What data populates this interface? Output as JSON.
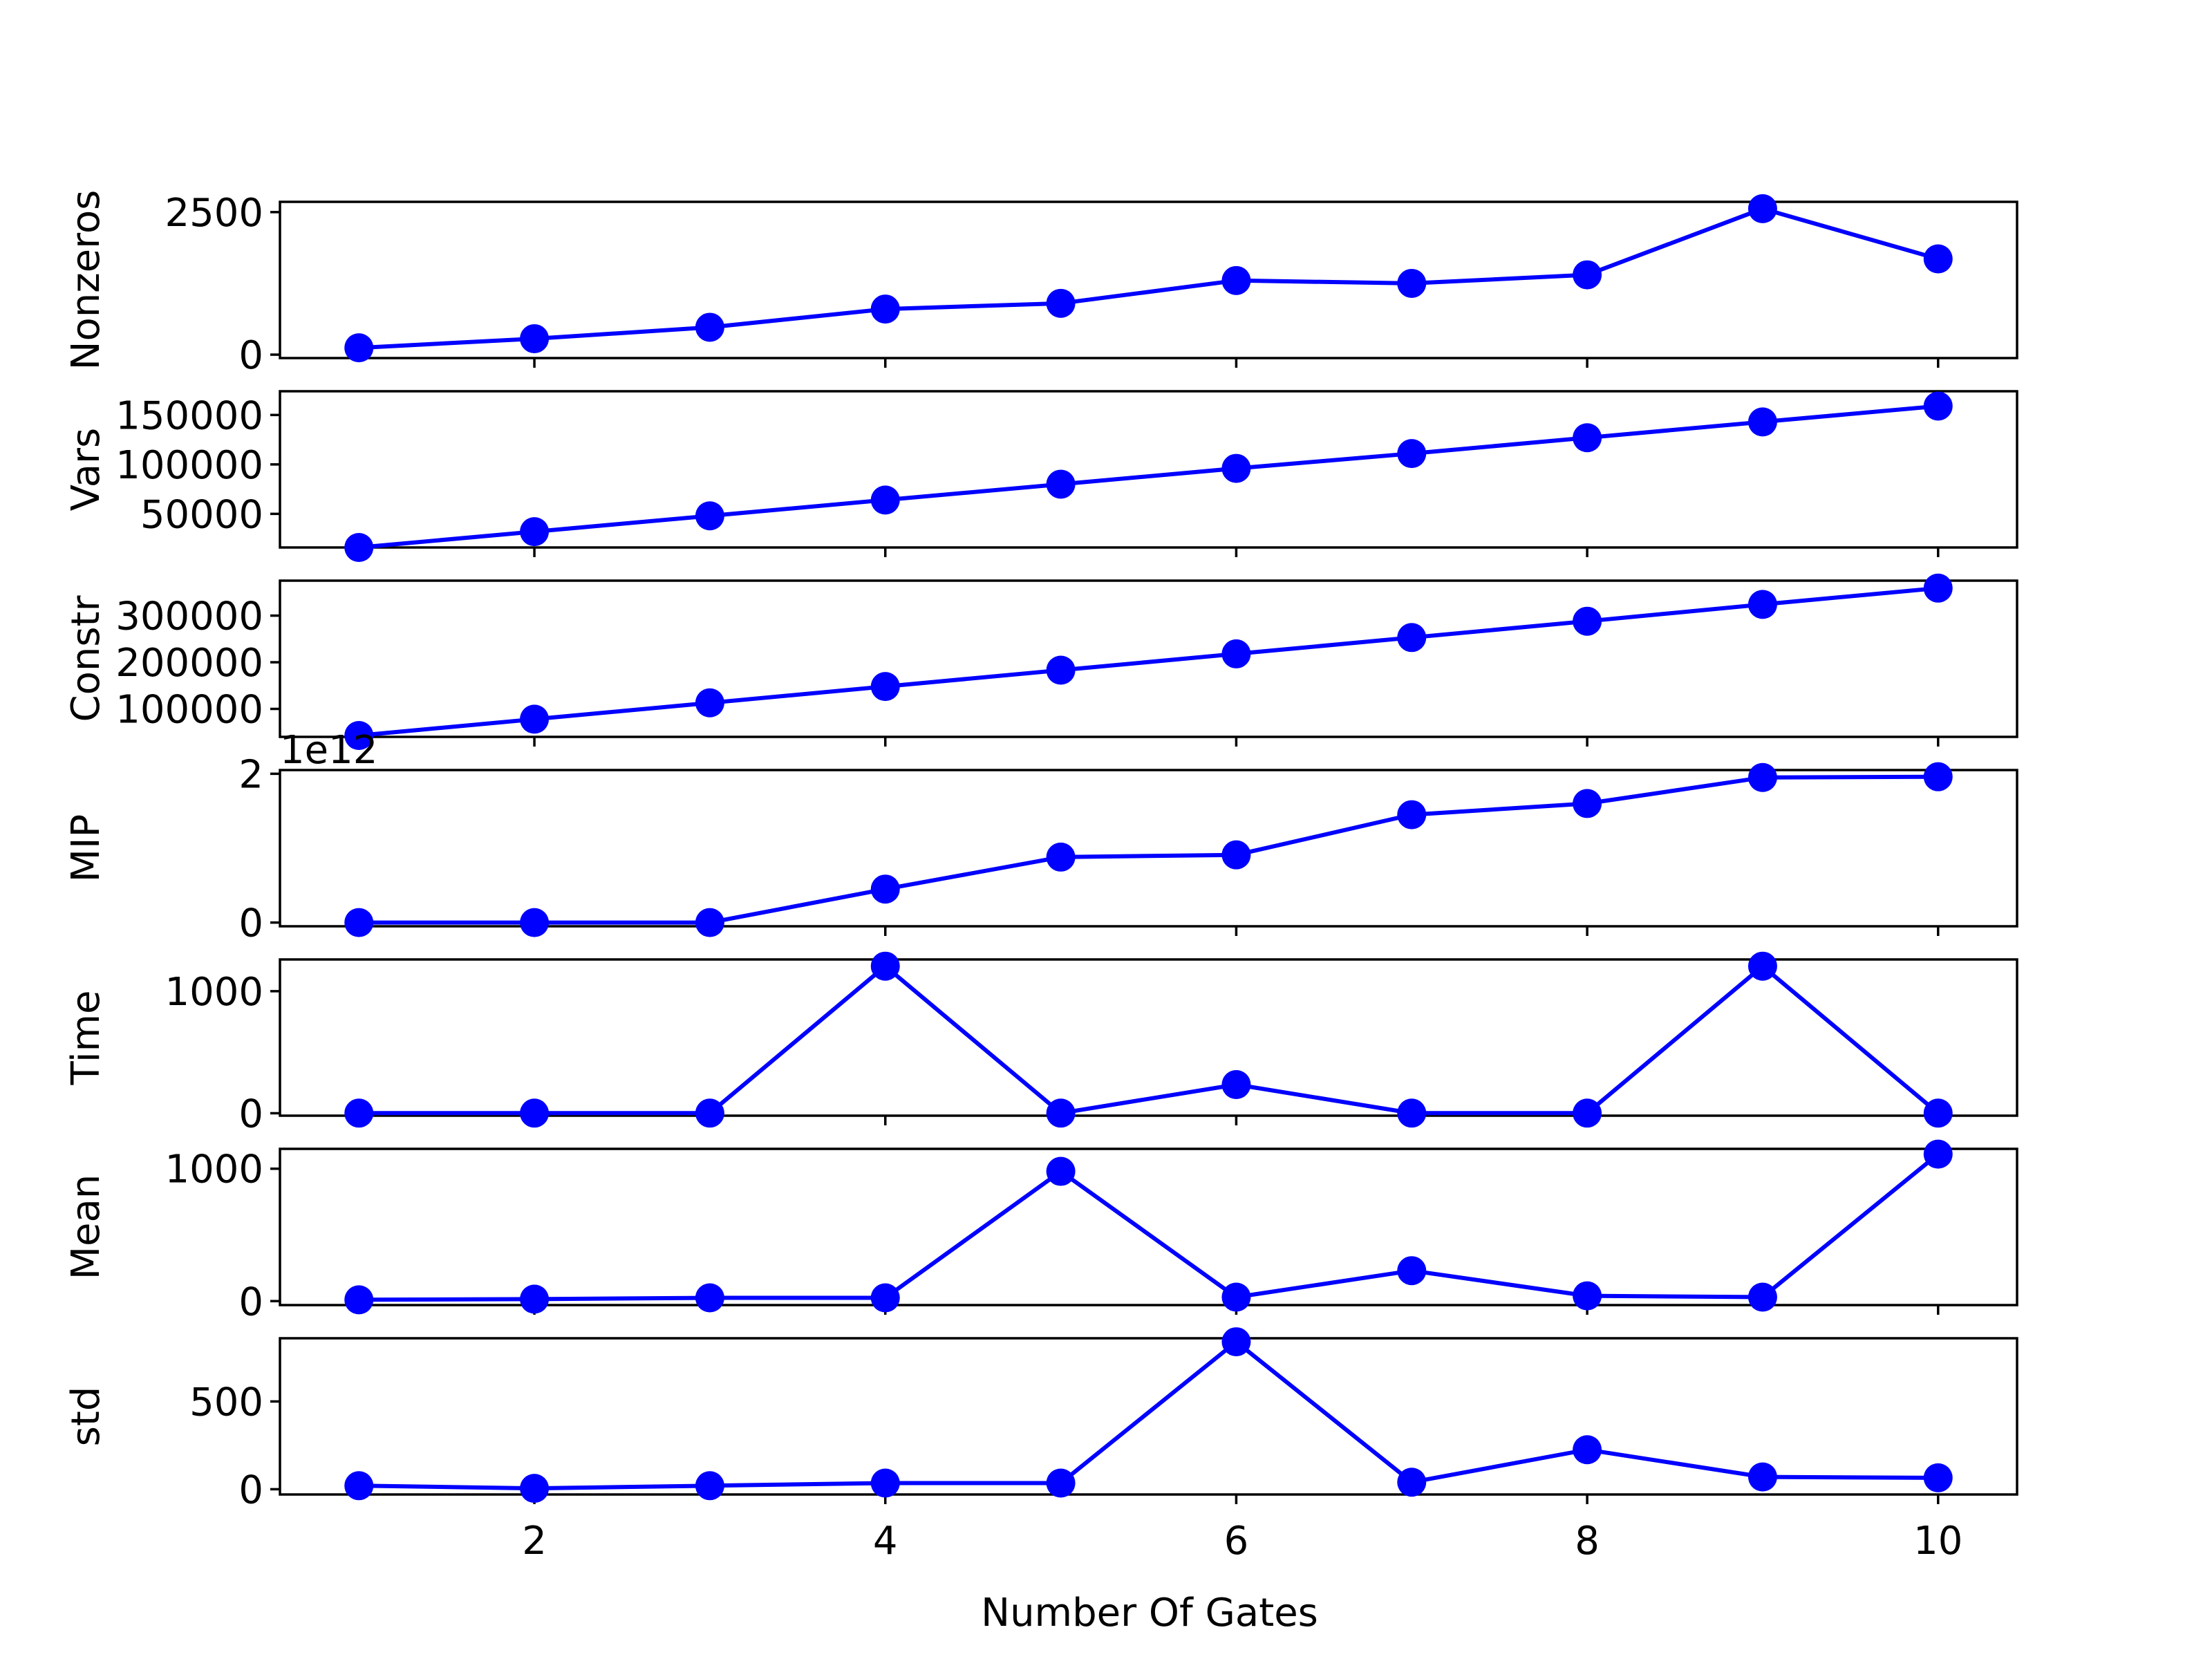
{
  "chart_data": {
    "type": "line",
    "layout": "stacked-subplots",
    "shared_x": true,
    "xlabel": "Number Of Gates",
    "x": [
      1,
      2,
      3,
      4,
      5,
      6,
      7,
      8,
      9,
      10
    ],
    "xticks": [
      2,
      4,
      6,
      8,
      10
    ],
    "xlim": [
      0.55,
      10.45
    ],
    "grid": false,
    "color": "#0000ff",
    "marker": "circle",
    "subplots": [
      {
        "ylabel": "Nonzeros",
        "ylim": [
          -60,
          2680
        ],
        "yticks": [
          0,
          2500
        ],
        "ytick_labels": [
          "0",
          "2500"
        ],
        "values": [
          120,
          280,
          480,
          800,
          900,
          1300,
          1250,
          1400,
          2560,
          1680
        ]
      },
      {
        "ylabel": "Vars",
        "ylim": [
          16000,
          174000
        ],
        "yticks": [
          50000,
          100000,
          150000
        ],
        "ytick_labels": [
          "50000",
          "100000",
          "150000"
        ],
        "values": [
          16000,
          32000,
          48000,
          64000,
          80000,
          96000,
          111000,
          127000,
          143000,
          159000
        ]
      },
      {
        "ylabel": "Constr",
        "ylim": [
          40000,
          375000
        ],
        "yticks": [
          100000,
          200000,
          300000
        ],
        "ytick_labels": [
          "100000",
          "200000",
          "300000"
        ],
        "values": [
          43000,
          78000,
          113000,
          148000,
          183000,
          218000,
          253000,
          288000,
          324000,
          359000
        ]
      },
      {
        "ylabel": "MIP",
        "ylim": [
          -0.05,
          2.05
        ],
        "offset_text": "1e12",
        "yticks": [
          0,
          2
        ],
        "ytick_labels": [
          "0",
          "2"
        ],
        "values": [
          0.0,
          0.0,
          0.0,
          0.45,
          0.88,
          0.91,
          1.45,
          1.6,
          1.95,
          1.96
        ]
      },
      {
        "ylabel": "Time",
        "ylim": [
          -20,
          1260
        ],
        "yticks": [
          0,
          1000
        ],
        "ytick_labels": [
          "0",
          "1000"
        ],
        "values": [
          1,
          1,
          1,
          1205,
          1,
          235,
          1,
          1,
          1205,
          1
        ]
      },
      {
        "ylabel": "Mean",
        "ylim": [
          -30,
          1150
        ],
        "yticks": [
          0,
          1000
        ],
        "ytick_labels": [
          "0",
          "1000"
        ],
        "values": [
          10,
          15,
          25,
          25,
          980,
          30,
          230,
          40,
          30,
          1110
        ]
      },
      {
        "ylabel": "std",
        "ylim": [
          -30,
          860
        ],
        "yticks": [
          0,
          500
        ],
        "ytick_labels": [
          "0",
          "500"
        ],
        "values": [
          20,
          5,
          20,
          35,
          35,
          840,
          40,
          225,
          70,
          65
        ]
      }
    ]
  }
}
